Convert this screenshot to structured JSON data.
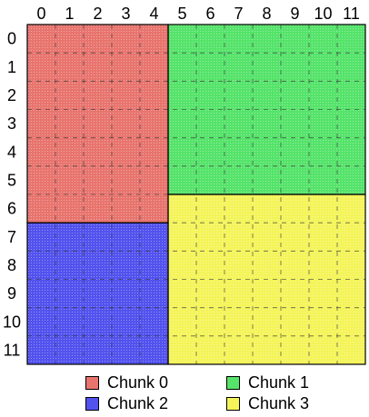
{
  "grid": {
    "columns": [
      "0",
      "1",
      "2",
      "3",
      "4",
      "5",
      "6",
      "7",
      "8",
      "9",
      "10",
      "11"
    ],
    "rows": [
      "0",
      "1",
      "2",
      "3",
      "4",
      "5",
      "6",
      "7",
      "8",
      "9",
      "10",
      "11"
    ]
  },
  "chunks": [
    {
      "name": "Chunk 0",
      "color": "#e8746e",
      "col_start": 0,
      "col_end": 5,
      "row_start": 0,
      "row_end": 7
    },
    {
      "name": "Chunk 1",
      "color": "#55e36a",
      "col_start": 5,
      "col_end": 12,
      "row_start": 0,
      "row_end": 6
    },
    {
      "name": "Chunk 2",
      "color": "#5252ee",
      "col_start": 0,
      "col_end": 5,
      "row_start": 7,
      "row_end": 12
    },
    {
      "name": "Chunk 3",
      "color": "#f4f45a",
      "col_start": 5,
      "col_end": 12,
      "row_start": 6,
      "row_end": 12
    }
  ],
  "legend": [
    {
      "label": "Chunk 0",
      "color": "#e8746e"
    },
    {
      "label": "Chunk 1",
      "color": "#55e36a"
    },
    {
      "label": "Chunk 2",
      "color": "#5252ee"
    },
    {
      "label": "Chunk 3",
      "color": "#f4f45a"
    }
  ]
}
